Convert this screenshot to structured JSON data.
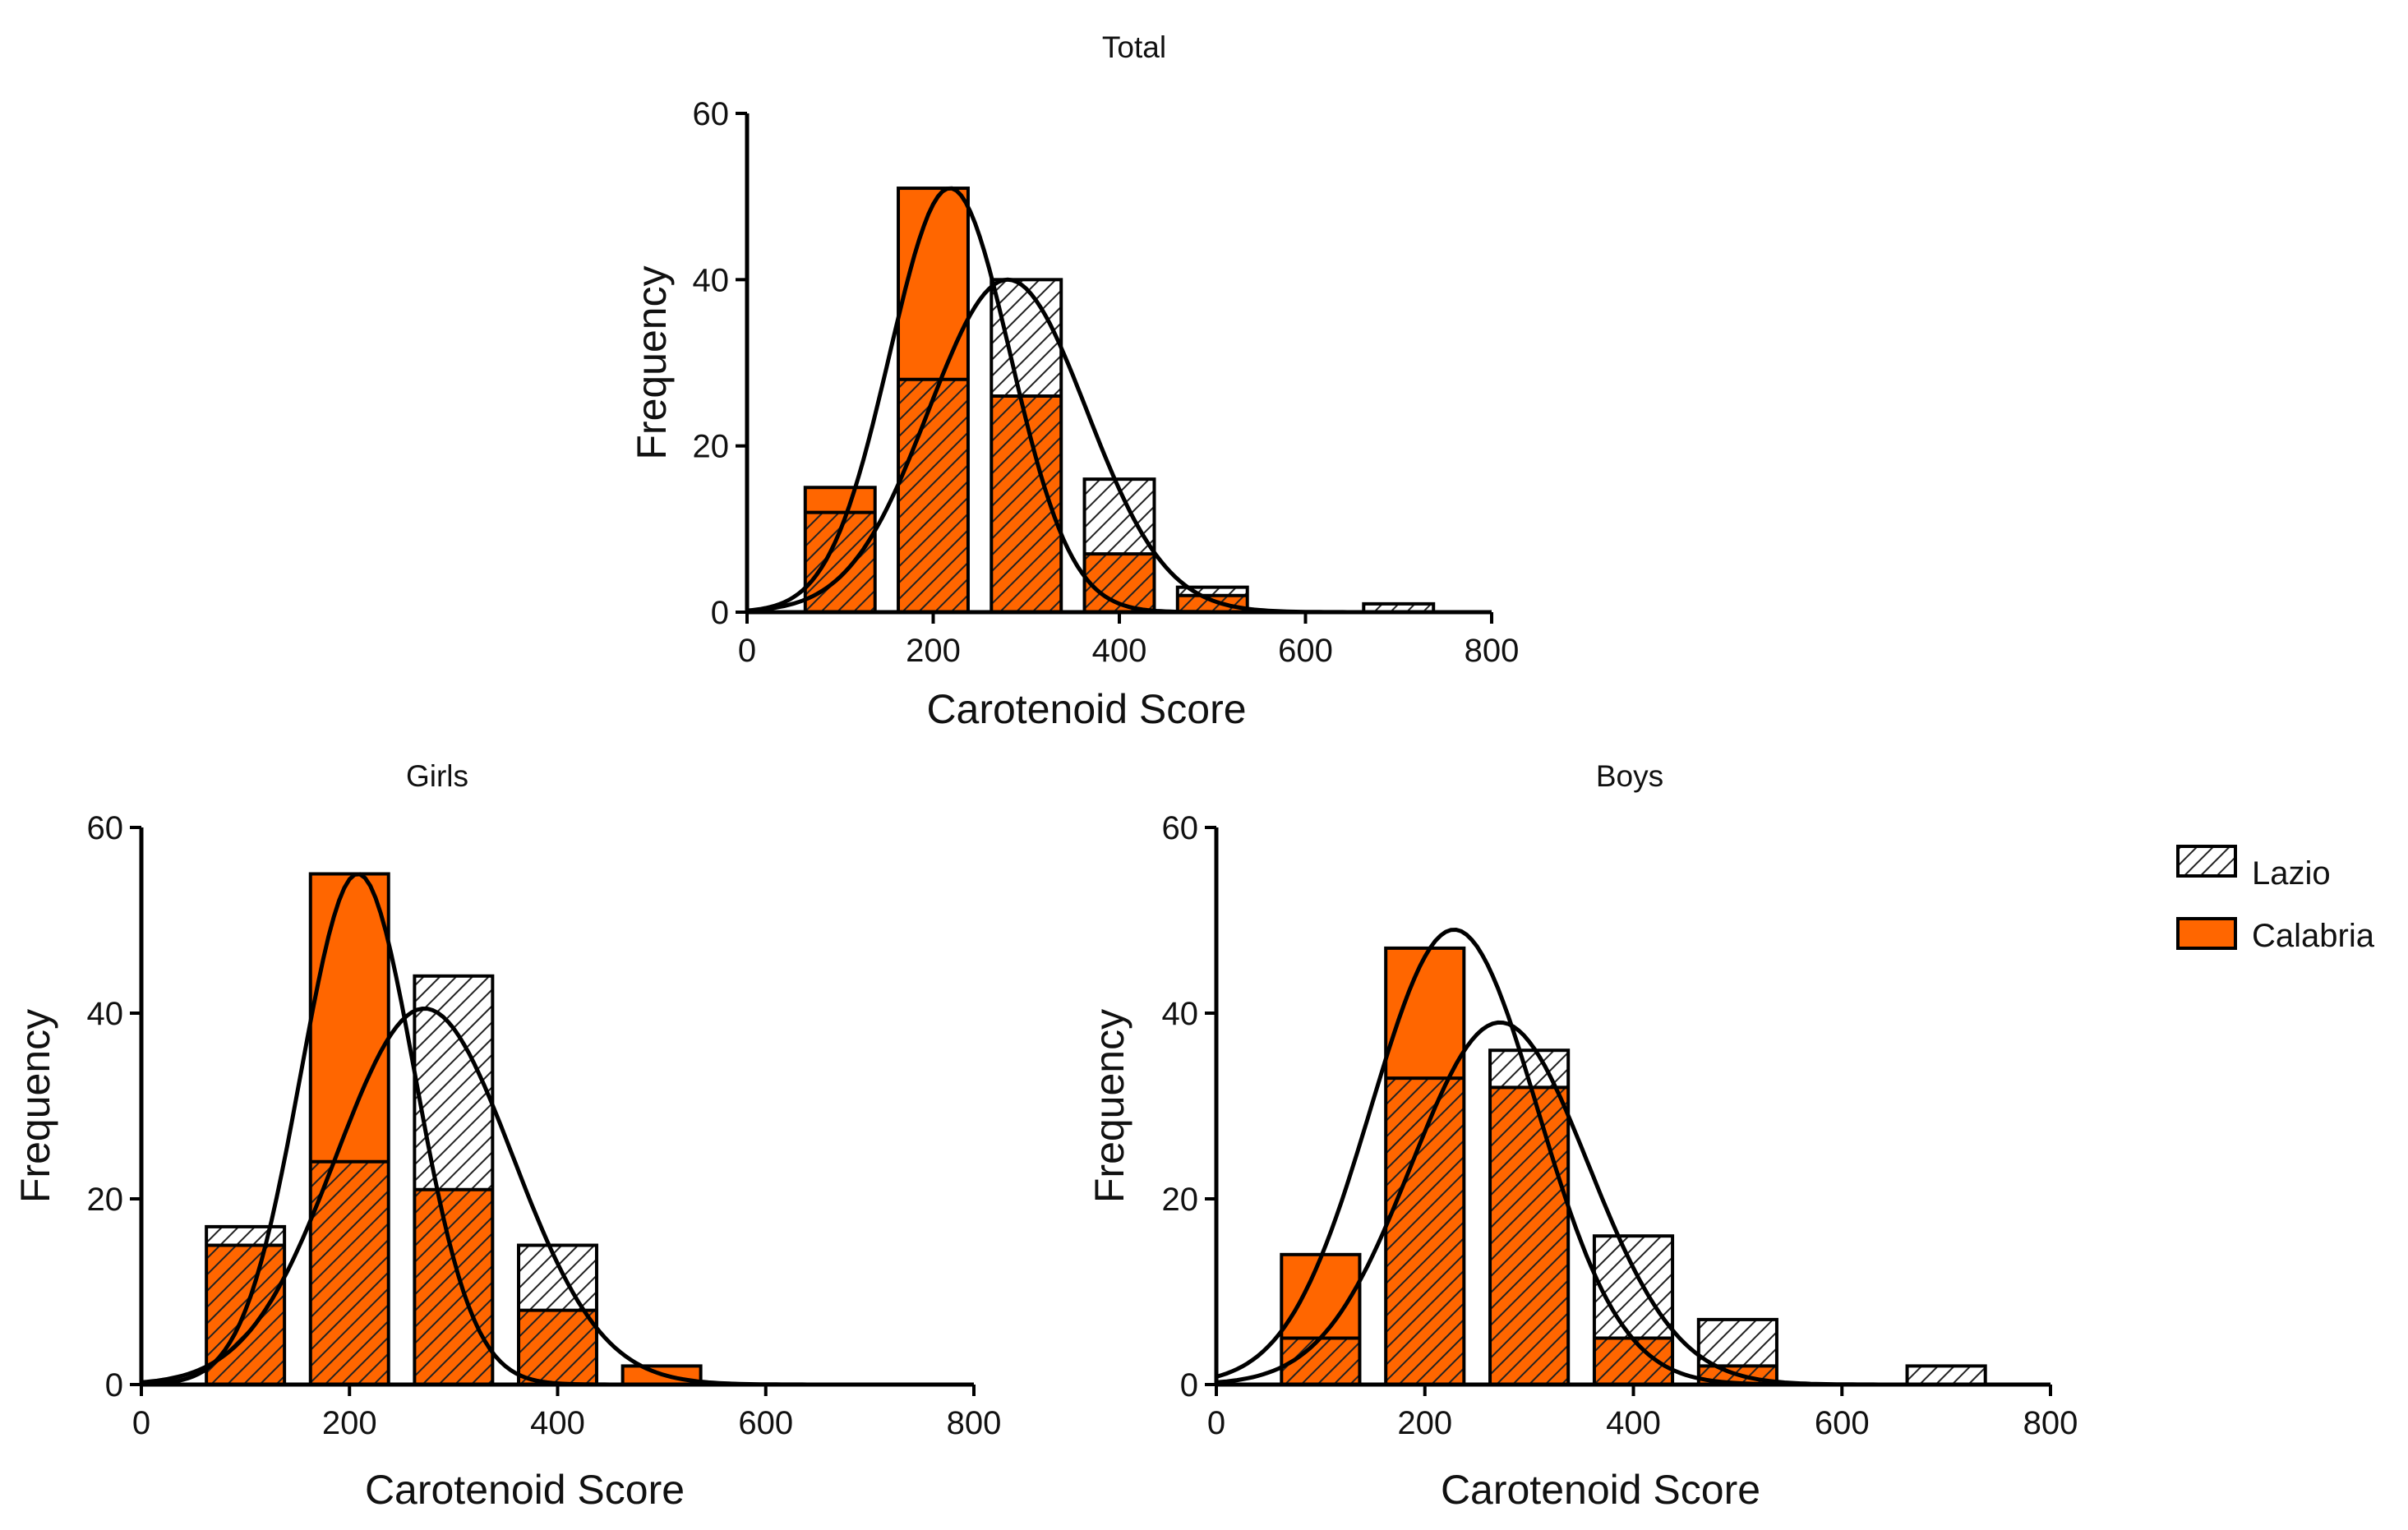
{
  "chart_data": [
    {
      "id": "total",
      "type": "bar",
      "title": "Total",
      "xlabel": "Carotenoid Score",
      "ylabel": "Frequency",
      "xlim": [
        0,
        800
      ],
      "ylim": [
        0,
        60
      ],
      "xticks": [
        0,
        200,
        400,
        600,
        800
      ],
      "yticks": [
        0,
        20,
        40,
        60
      ],
      "bin_centers": [
        100,
        200,
        300,
        400,
        500,
        600,
        700
      ],
      "series": [
        {
          "name": "Calabria",
          "values": [
            12,
            28,
            26,
            7,
            2,
            0,
            0
          ]
        },
        {
          "name": "Lazio",
          "values": [
            0,
            0,
            14,
            9,
            1,
            0,
            1
          ]
        }
      ],
      "solid_orange_top": [
        15,
        51,
        0,
        0,
        0,
        0,
        0
      ],
      "curves": [
        {
          "mean": 218,
          "sd": 65,
          "peak": 51
        },
        {
          "mean": 280,
          "sd": 85,
          "peak": 40
        }
      ]
    },
    {
      "id": "girls",
      "type": "bar",
      "title": "Girls",
      "xlabel": "Carotenoid Score",
      "ylabel": "Frequency",
      "xlim": [
        0,
        800
      ],
      "ylim": [
        0,
        60
      ],
      "xticks": [
        0,
        200,
        400,
        600,
        800
      ],
      "yticks": [
        0,
        20,
        40,
        60
      ],
      "bin_centers": [
        100,
        200,
        300,
        400,
        500,
        600,
        700
      ],
      "series": [
        {
          "name": "Calabria",
          "values": [
            15,
            24,
            21,
            8,
            0,
            0,
            0
          ]
        },
        {
          "name": "Lazio",
          "values": [
            2,
            0,
            23,
            7,
            0,
            0,
            0
          ]
        }
      ],
      "solid_orange_top": [
        0,
        55,
        0,
        0,
        2,
        0,
        0
      ],
      "curves": [
        {
          "mean": 208,
          "sd": 55,
          "peak": 55
        },
        {
          "mean": 272,
          "sd": 85,
          "peak": 40.5
        }
      ]
    },
    {
      "id": "boys",
      "type": "bar",
      "title": "Boys",
      "xlabel": "Carotenoid Score",
      "ylabel": "Frequency",
      "xlim": [
        0,
        800
      ],
      "ylim": [
        0,
        60
      ],
      "xticks": [
        0,
        200,
        400,
        600,
        800
      ],
      "yticks": [
        0,
        20,
        40,
        60
      ],
      "bin_centers": [
        100,
        200,
        300,
        400,
        500,
        600,
        700
      ],
      "series": [
        {
          "name": "Calabria",
          "values": [
            5,
            33,
            32,
            5,
            2,
            0,
            0
          ]
        },
        {
          "name": "Lazio",
          "values": [
            0,
            0,
            4,
            11,
            5,
            0,
            2
          ]
        }
      ],
      "solid_orange_top": [
        14,
        47,
        0,
        0,
        0,
        0,
        0
      ],
      "curves": [
        {
          "mean": 228,
          "sd": 80,
          "peak": 49
        },
        {
          "mean": 272,
          "sd": 85,
          "peak": 39
        }
      ]
    }
  ],
  "legend": {
    "items": [
      {
        "label": "Lazio",
        "pattern": "hatched"
      },
      {
        "label": "Calabria",
        "pattern": "solid"
      }
    ]
  },
  "colors": {
    "calabria": "#FF6600",
    "lazio_fill": "#ffffff",
    "hatch": "#222222"
  }
}
